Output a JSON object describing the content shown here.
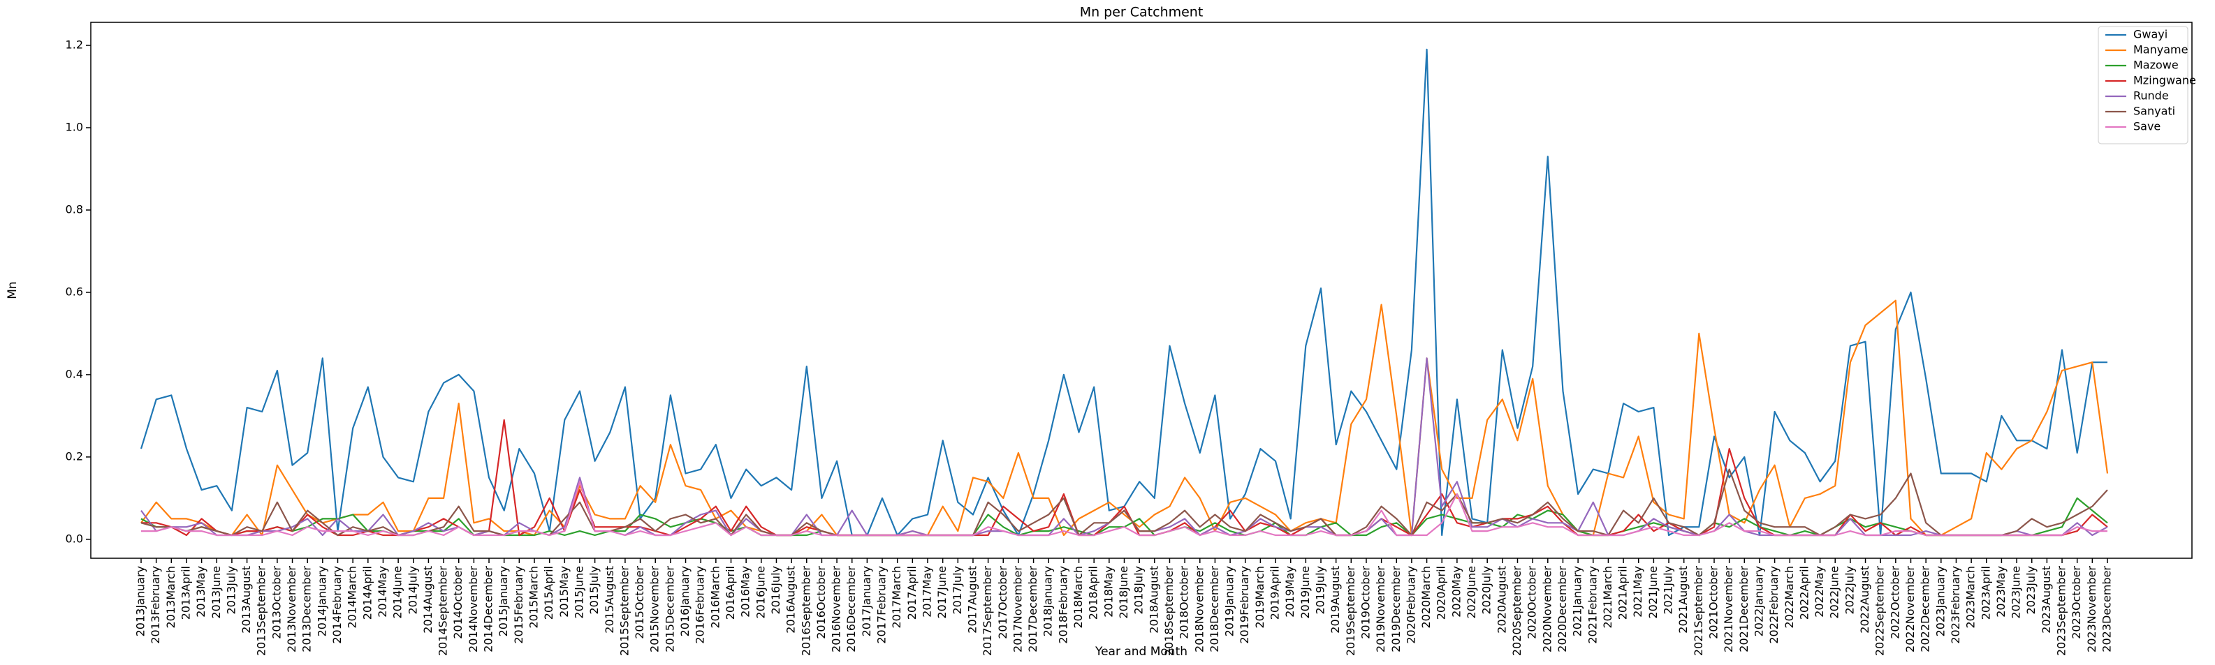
{
  "chart_data": {
    "type": "line",
    "title": "Mn per Catchment",
    "x_label": "Year and Month",
    "y_label": "Mn",
    "categories": [
      "2013January",
      "2013February",
      "2013March",
      "2013April",
      "2013May",
      "2013June",
      "2013July",
      "2013August",
      "2013September",
      "2013October",
      "2013November",
      "2013December",
      "2014January",
      "2014February",
      "2014March",
      "2014April",
      "2014May",
      "2014June",
      "2014July",
      "2014August",
      "2014September",
      "2014October",
      "2014November",
      "2014December",
      "2015January",
      "2015February",
      "2015March",
      "2015April",
      "2015May",
      "2015June",
      "2015July",
      "2015August",
      "2015September",
      "2015October",
      "2015November",
      "2015December",
      "2016January",
      "2016February",
      "2016March",
      "2016April",
      "2016May",
      "2016June",
      "2016July",
      "2016August",
      "2016September",
      "2016October",
      "2016November",
      "2016December",
      "2017January",
      "2017February",
      "2017March",
      "2017April",
      "2017May",
      "2017June",
      "2017July",
      "2017August",
      "2017September",
      "2017October",
      "2017November",
      "2017December",
      "2018January",
      "2018February",
      "2018March",
      "2018April",
      "2018May",
      "2018June",
      "2018July",
      "2018August",
      "2018September",
      "2018October",
      "2018November",
      "2018December",
      "2019January",
      "2019February",
      "2019March",
      "2019April",
      "2019May",
      "2019June",
      "2019July",
      "2019August",
      "2019September",
      "2019October",
      "2019November",
      "2019December",
      "2020February",
      "2020March",
      "2020April",
      "2020May",
      "2020June",
      "2020July",
      "2020August",
      "2020September",
      "2020October",
      "2020November",
      "2020December",
      "2021January",
      "2021February",
      "2021March",
      "2021April",
      "2021May",
      "2021June",
      "2021July",
      "2021August",
      "2021September",
      "2021October",
      "2021November",
      "2021December",
      "2022January",
      "2022February",
      "2022March",
      "2022April",
      "2022May",
      "2022June",
      "2022July",
      "2022August",
      "2022September",
      "2022October",
      "2022November",
      "2022December",
      "2023January",
      "2023February",
      "2023March",
      "2023April",
      "2023May",
      "2023June",
      "2023July",
      "2023August",
      "2023September",
      "2023October",
      "2023November",
      "2023December"
    ],
    "series": [
      {
        "name": "Gwayi",
        "color": "#1f77b4",
        "values": [
          0.22,
          0.34,
          0.35,
          0.22,
          0.12,
          0.13,
          0.07,
          0.32,
          0.31,
          0.41,
          0.18,
          0.21,
          0.44,
          0.02,
          0.27,
          0.37,
          0.2,
          0.15,
          0.14,
          0.31,
          0.38,
          0.4,
          0.36,
          0.15,
          0.07,
          0.22,
          0.16,
          0.02,
          0.29,
          0.36,
          0.19,
          0.26,
          0.37,
          0.05,
          0.1,
          0.35,
          0.16,
          0.17,
          0.23,
          0.1,
          0.17,
          0.13,
          0.15,
          0.12,
          0.42,
          0.1,
          0.19,
          0.01,
          0.01,
          0.1,
          0.01,
          0.05,
          0.06,
          0.24,
          0.09,
          0.06,
          0.15,
          0.07,
          0.01,
          0.11,
          0.24,
          0.4,
          0.26,
          0.37,
          0.07,
          0.08,
          0.14,
          0.1,
          0.47,
          0.33,
          0.21,
          0.35,
          0.05,
          0.11,
          0.22,
          0.19,
          0.05,
          0.47,
          0.61,
          0.23,
          0.36,
          0.31,
          0.24,
          0.17,
          0.46,
          1.19,
          0.01,
          0.34,
          0.05,
          0.04,
          0.46,
          0.27,
          0.42,
          0.93,
          0.36,
          0.11,
          0.17,
          0.16,
          0.33,
          0.31,
          0.32,
          0.01,
          0.03,
          0.03,
          0.25,
          0.15,
          0.2,
          0.01,
          0.31,
          0.24,
          0.21,
          0.14,
          0.19,
          0.47,
          0.48,
          0.01,
          0.51,
          0.6,
          0.39,
          0.16,
          0.16,
          0.16,
          0.14,
          0.3,
          0.24,
          0.24,
          0.22,
          0.46,
          0.21,
          0.43,
          0.43
        ]
      },
      {
        "name": "Manyame",
        "color": "#ff7f0e",
        "values": [
          0.04,
          0.09,
          0.05,
          0.05,
          0.04,
          0.02,
          0.01,
          0.06,
          0.01,
          0.18,
          0.12,
          0.06,
          0.04,
          0.05,
          0.06,
          0.06,
          0.09,
          0.02,
          0.02,
          0.1,
          0.1,
          0.33,
          0.04,
          0.05,
          0.02,
          0.02,
          0.01,
          0.07,
          0.03,
          0.13,
          0.06,
          0.05,
          0.05,
          0.13,
          0.09,
          0.23,
          0.13,
          0.12,
          0.05,
          0.07,
          0.03,
          0.02,
          0.01,
          0.01,
          0.02,
          0.06,
          0.01,
          0.01,
          0.01,
          0.01,
          0.01,
          0.02,
          0.01,
          0.08,
          0.02,
          0.15,
          0.14,
          0.1,
          0.21,
          0.1,
          0.1,
          0.01,
          0.05,
          0.07,
          0.09,
          0.06,
          0.03,
          0.06,
          0.08,
          0.15,
          0.1,
          0.02,
          0.09,
          0.1,
          0.08,
          0.06,
          0.02,
          0.04,
          0.05,
          0.04,
          0.28,
          0.34,
          0.57,
          0.3,
          0.01,
          0.44,
          0.17,
          0.1,
          0.1,
          0.29,
          0.34,
          0.24,
          0.39,
          0.13,
          0.06,
          0.02,
          0.01,
          0.16,
          0.15,
          0.25,
          0.09,
          0.06,
          0.05,
          0.5,
          0.27,
          0.06,
          0.04,
          0.12,
          0.18,
          0.03,
          0.1,
          0.11,
          0.13,
          0.43,
          0.52,
          0.55,
          0.58,
          0.05,
          0.01,
          0.01,
          0.03,
          0.05,
          0.21,
          0.17,
          0.22,
          0.24,
          0.31,
          0.41,
          0.42,
          0.43,
          0.16
        ]
      },
      {
        "name": "Mazowe",
        "color": "#2ca02c",
        "values": [
          0.05,
          0.03,
          0.03,
          0.02,
          0.03,
          0.02,
          0.01,
          0.02,
          0.02,
          0.03,
          0.02,
          0.03,
          0.05,
          0.05,
          0.06,
          0.02,
          0.02,
          0.01,
          0.02,
          0.02,
          0.02,
          0.05,
          0.01,
          0.02,
          0.01,
          0.01,
          0.01,
          0.02,
          0.01,
          0.02,
          0.01,
          0.02,
          0.02,
          0.06,
          0.05,
          0.03,
          0.04,
          0.05,
          0.04,
          0.02,
          0.03,
          0.01,
          0.01,
          0.01,
          0.01,
          0.02,
          0.01,
          0.01,
          0.01,
          0.01,
          0.01,
          0.01,
          0.01,
          0.01,
          0.01,
          0.01,
          0.06,
          0.03,
          0.01,
          0.02,
          0.02,
          0.03,
          0.02,
          0.01,
          0.03,
          0.03,
          0.05,
          0.01,
          0.02,
          0.03,
          0.02,
          0.04,
          0.02,
          0.01,
          0.02,
          0.04,
          0.01,
          0.01,
          0.03,
          0.04,
          0.01,
          0.01,
          0.03,
          0.04,
          0.01,
          0.05,
          0.06,
          0.05,
          0.04,
          0.04,
          0.03,
          0.06,
          0.05,
          0.07,
          0.06,
          0.02,
          0.01,
          0.01,
          0.02,
          0.03,
          0.04,
          0.03,
          0.02,
          0.01,
          0.04,
          0.03,
          0.05,
          0.03,
          0.02,
          0.01,
          0.02,
          0.01,
          0.03,
          0.05,
          0.03,
          0.04,
          0.03,
          0.02,
          0.01,
          0.01,
          0.01,
          0.01,
          0.01,
          0.01,
          0.01,
          0.01,
          0.02,
          0.03,
          0.1,
          0.07,
          0.04
        ]
      },
      {
        "name": "Mzingwane",
        "color": "#d62728",
        "values": [
          0.04,
          0.04,
          0.03,
          0.01,
          0.05,
          0.02,
          0.01,
          0.02,
          0.02,
          0.03,
          0.02,
          0.06,
          0.03,
          0.01,
          0.01,
          0.02,
          0.01,
          0.01,
          0.02,
          0.03,
          0.05,
          0.03,
          0.01,
          0.02,
          0.29,
          0.01,
          0.03,
          0.1,
          0.02,
          0.12,
          0.03,
          0.03,
          0.03,
          0.03,
          0.02,
          0.01,
          0.03,
          0.05,
          0.08,
          0.02,
          0.08,
          0.03,
          0.01,
          0.01,
          0.03,
          0.02,
          0.01,
          0.01,
          0.01,
          0.01,
          0.01,
          0.01,
          0.01,
          0.01,
          0.01,
          0.01,
          0.01,
          0.08,
          0.05,
          0.02,
          0.03,
          0.11,
          0.01,
          0.01,
          0.04,
          0.08,
          0.01,
          0.01,
          0.02,
          0.04,
          0.01,
          0.03,
          0.07,
          0.02,
          0.04,
          0.03,
          0.01,
          0.03,
          0.05,
          0.01,
          0.01,
          0.02,
          0.05,
          0.03,
          0.01,
          0.06,
          0.11,
          0.04,
          0.03,
          0.04,
          0.05,
          0.05,
          0.06,
          0.08,
          0.04,
          0.01,
          0.01,
          0.01,
          0.02,
          0.06,
          0.02,
          0.04,
          0.02,
          0.01,
          0.03,
          0.22,
          0.1,
          0.03,
          0.01,
          0.01,
          0.01,
          0.01,
          0.01,
          0.06,
          0.02,
          0.04,
          0.01,
          0.03,
          0.01,
          0.01,
          0.01,
          0.01,
          0.01,
          0.01,
          0.01,
          0.01,
          0.01,
          0.01,
          0.02,
          0.06,
          0.03
        ]
      },
      {
        "name": "Runde",
        "color": "#9467bd",
        "values": [
          0.07,
          0.02,
          0.03,
          0.03,
          0.04,
          0.01,
          0.01,
          0.01,
          0.02,
          0.02,
          0.03,
          0.05,
          0.01,
          0.05,
          0.02,
          0.02,
          0.06,
          0.01,
          0.02,
          0.04,
          0.02,
          0.03,
          0.01,
          0.02,
          0.01,
          0.04,
          0.02,
          0.01,
          0.03,
          0.15,
          0.02,
          0.02,
          0.01,
          0.03,
          0.01,
          0.01,
          0.04,
          0.06,
          0.07,
          0.01,
          0.05,
          0.02,
          0.01,
          0.01,
          0.06,
          0.01,
          0.01,
          0.07,
          0.01,
          0.01,
          0.01,
          0.02,
          0.01,
          0.01,
          0.01,
          0.01,
          0.02,
          0.02,
          0.01,
          0.01,
          0.01,
          0.05,
          0.01,
          0.02,
          0.04,
          0.07,
          0.02,
          0.02,
          0.03,
          0.05,
          0.01,
          0.03,
          0.01,
          0.02,
          0.05,
          0.03,
          0.02,
          0.03,
          0.03,
          0.01,
          0.01,
          0.02,
          0.05,
          0.01,
          0.01,
          0.44,
          0.08,
          0.14,
          0.03,
          0.03,
          0.05,
          0.03,
          0.05,
          0.04,
          0.04,
          0.02,
          0.09,
          0.01,
          0.01,
          0.02,
          0.05,
          0.03,
          0.02,
          0.01,
          0.02,
          0.06,
          0.02,
          0.01,
          0.01,
          0.01,
          0.01,
          0.01,
          0.01,
          0.05,
          0.01,
          0.01,
          0.01,
          0.01,
          0.02,
          0.01,
          0.01,
          0.01,
          0.01,
          0.01,
          0.02,
          0.01,
          0.01,
          0.01,
          0.04,
          0.01,
          0.03
        ]
      },
      {
        "name": "Sanyati",
        "color": "#8c564b",
        "values": [
          0.04,
          0.03,
          0.03,
          0.02,
          0.03,
          0.02,
          0.01,
          0.03,
          0.02,
          0.09,
          0.02,
          0.07,
          0.04,
          0.01,
          0.03,
          0.02,
          0.03,
          0.01,
          0.01,
          0.02,
          0.03,
          0.08,
          0.02,
          0.02,
          0.01,
          0.02,
          0.02,
          0.01,
          0.05,
          0.09,
          0.02,
          0.02,
          0.03,
          0.05,
          0.02,
          0.05,
          0.06,
          0.04,
          0.05,
          0.01,
          0.06,
          0.02,
          0.01,
          0.01,
          0.04,
          0.02,
          0.01,
          0.01,
          0.01,
          0.01,
          0.01,
          0.01,
          0.01,
          0.01,
          0.01,
          0.01,
          0.09,
          0.06,
          0.02,
          0.04,
          0.06,
          0.1,
          0.01,
          0.04,
          0.04,
          0.07,
          0.02,
          0.02,
          0.04,
          0.07,
          0.03,
          0.06,
          0.03,
          0.02,
          0.06,
          0.04,
          0.02,
          0.03,
          0.05,
          0.01,
          0.01,
          0.03,
          0.08,
          0.05,
          0.01,
          0.09,
          0.07,
          0.11,
          0.04,
          0.04,
          0.05,
          0.04,
          0.06,
          0.09,
          0.05,
          0.02,
          0.02,
          0.01,
          0.07,
          0.04,
          0.1,
          0.04,
          0.03,
          0.01,
          0.04,
          0.17,
          0.07,
          0.04,
          0.03,
          0.03,
          0.03,
          0.01,
          0.03,
          0.06,
          0.05,
          0.06,
          0.1,
          0.16,
          0.04,
          0.01,
          0.01,
          0.01,
          0.01,
          0.01,
          0.02,
          0.05,
          0.03,
          0.04,
          0.06,
          0.08,
          0.12
        ]
      },
      {
        "name": "Save",
        "color": "#e377c2",
        "values": [
          0.02,
          0.02,
          0.03,
          0.02,
          0.02,
          0.01,
          0.01,
          0.01,
          0.01,
          0.02,
          0.01,
          0.03,
          0.02,
          0.02,
          0.02,
          0.01,
          0.02,
          0.01,
          0.01,
          0.02,
          0.01,
          0.03,
          0.01,
          0.01,
          0.01,
          0.02,
          0.02,
          0.01,
          0.02,
          0.14,
          0.02,
          0.02,
          0.01,
          0.02,
          0.01,
          0.01,
          0.02,
          0.03,
          0.04,
          0.01,
          0.03,
          0.01,
          0.01,
          0.01,
          0.02,
          0.01,
          0.01,
          0.01,
          0.01,
          0.01,
          0.01,
          0.01,
          0.01,
          0.01,
          0.01,
          0.01,
          0.03,
          0.02,
          0.01,
          0.01,
          0.01,
          0.02,
          0.01,
          0.01,
          0.02,
          0.03,
          0.01,
          0.01,
          0.02,
          0.03,
          0.01,
          0.02,
          0.01,
          0.01,
          0.02,
          0.01,
          0.01,
          0.01,
          0.02,
          0.01,
          0.01,
          0.02,
          0.07,
          0.01,
          0.01,
          0.01,
          0.04,
          0.11,
          0.02,
          0.02,
          0.03,
          0.03,
          0.04,
          0.03,
          0.03,
          0.01,
          0.01,
          0.01,
          0.01,
          0.02,
          0.03,
          0.02,
          0.01,
          0.01,
          0.02,
          0.04,
          0.02,
          0.02,
          0.01,
          0.01,
          0.01,
          0.01,
          0.01,
          0.02,
          0.01,
          0.01,
          0.02,
          0.02,
          0.01,
          0.01,
          0.01,
          0.01,
          0.01,
          0.01,
          0.01,
          0.01,
          0.01,
          0.01,
          0.03,
          0.02,
          0.02
        ]
      }
    ],
    "ylim": [
      -0.046,
      1.256
    ],
    "yticks": [
      {
        "value": 0,
        "label": "0.0"
      },
      0.2,
      0.4,
      0.6,
      0.8,
      {
        "value": 1,
        "label": "1.0"
      },
      1.2
    ],
    "legend": "upper right"
  }
}
